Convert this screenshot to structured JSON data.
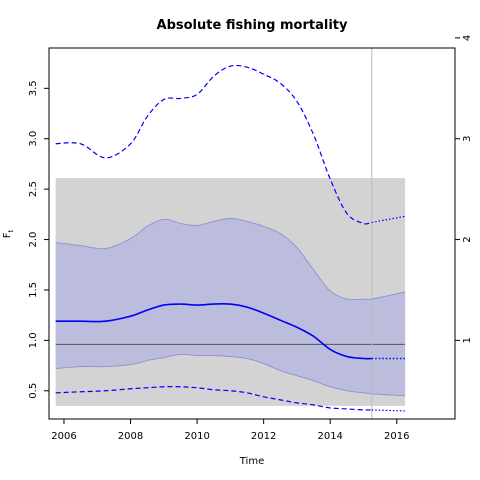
{
  "chart_data": {
    "type": "line",
    "title": "Absolute fishing mortality",
    "xlabel": "Time",
    "ylabel_main": "F",
    "ylabel_sub": "t",
    "xlim": [
      2005.55,
      2017.75
    ],
    "ylim": [
      0.22,
      3.9
    ],
    "right_ylim": [
      0.22,
      3.9
    ],
    "x_ticks": [
      2006,
      2008,
      2010,
      2012,
      2014,
      2016
    ],
    "y_ticks": [
      0.5,
      1.0,
      1.5,
      2.0,
      2.5,
      3.0,
      3.5
    ],
    "y_tick_labels": [
      "0.5",
      "1.0",
      "1.5",
      "2.0",
      "2.5",
      "3.0",
      "3.5"
    ],
    "right_ticks": [
      1,
      2,
      3,
      4
    ],
    "gray_band": {
      "x0": 2005.75,
      "x1": 2016.25,
      "y0": 0.35,
      "y1": 2.61
    },
    "hline": 0.96,
    "vline": 2015.25,
    "estimate_end": 2015.25,
    "series": [
      {
        "role": "upper_ci_band",
        "x": [
          2005.75,
          2006.5,
          2007.25,
          2008,
          2008.5,
          2009,
          2009.5,
          2010,
          2010.5,
          2011,
          2011.5,
          2012,
          2012.5,
          2013,
          2013.5,
          2014,
          2014.5,
          2015,
          2015.25,
          2016.25
        ],
        "values": [
          1.97,
          1.94,
          1.91,
          2.01,
          2.13,
          2.2,
          2.16,
          2.14,
          2.18,
          2.21,
          2.18,
          2.13,
          2.06,
          1.92,
          1.7,
          1.49,
          1.41,
          1.41,
          1.41,
          1.48
        ]
      },
      {
        "role": "lower_ci_band",
        "x": [
          2005.75,
          2006.5,
          2007.25,
          2008,
          2008.5,
          2009,
          2009.5,
          2010,
          2010.5,
          2011,
          2011.5,
          2012,
          2012.5,
          2013,
          2013.5,
          2014,
          2014.5,
          2015,
          2015.25,
          2016.25
        ],
        "values": [
          0.72,
          0.74,
          0.74,
          0.76,
          0.8,
          0.83,
          0.86,
          0.85,
          0.85,
          0.84,
          0.82,
          0.77,
          0.7,
          0.65,
          0.6,
          0.54,
          0.5,
          0.48,
          0.47,
          0.45
        ]
      },
      {
        "role": "estimate",
        "x": [
          2005.75,
          2006.5,
          2007.25,
          2008,
          2008.5,
          2009,
          2009.5,
          2010,
          2010.5,
          2011,
          2011.5,
          2012,
          2012.5,
          2013,
          2013.5,
          2014,
          2014.5,
          2015,
          2015.25,
          2016.25
        ],
        "values": [
          1.19,
          1.19,
          1.19,
          1.24,
          1.3,
          1.35,
          1.36,
          1.35,
          1.36,
          1.36,
          1.33,
          1.27,
          1.2,
          1.13,
          1.04,
          0.91,
          0.84,
          0.82,
          0.82,
          0.82
        ]
      },
      {
        "role": "upper_dashed",
        "x": [
          2005.75,
          2006.5,
          2007.25,
          2008,
          2008.5,
          2009,
          2009.5,
          2010,
          2010.5,
          2011,
          2011.5,
          2012,
          2012.5,
          2013,
          2013.5,
          2014,
          2014.5,
          2015,
          2015.25,
          2016.25
        ],
        "values": [
          2.95,
          2.95,
          2.81,
          2.95,
          3.22,
          3.39,
          3.4,
          3.44,
          3.62,
          3.72,
          3.71,
          3.64,
          3.55,
          3.37,
          3.04,
          2.6,
          2.26,
          2.16,
          2.17,
          2.23
        ]
      },
      {
        "role": "lower_dashed",
        "x": [
          2005.75,
          2006.5,
          2007.25,
          2008,
          2008.5,
          2009,
          2009.5,
          2010,
          2010.5,
          2011,
          2011.5,
          2012,
          2012.5,
          2013,
          2013.5,
          2014,
          2014.5,
          2015,
          2015.25,
          2016.25
        ],
        "values": [
          0.48,
          0.49,
          0.5,
          0.52,
          0.53,
          0.54,
          0.54,
          0.53,
          0.51,
          0.5,
          0.48,
          0.44,
          0.41,
          0.38,
          0.36,
          0.33,
          0.32,
          0.31,
          0.31,
          0.3
        ]
      }
    ],
    "colors": {
      "band_gray": "#d3d3d3",
      "ci_fill": "#bcbcdc",
      "ci_border": "#8f8fd6",
      "estimate": "#0000ff",
      "hline": "#555555",
      "vline": "#bbbbbb",
      "axis": "#000000"
    }
  }
}
